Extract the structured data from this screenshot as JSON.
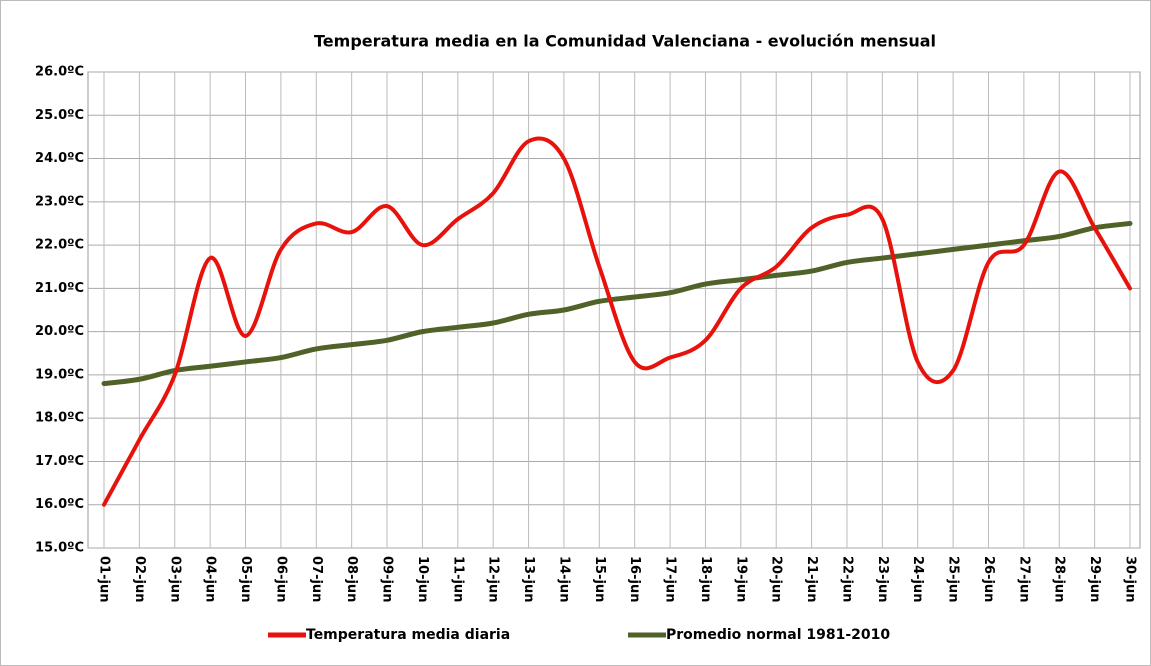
{
  "chart_data": {
    "type": "line",
    "title": "Temperatura media en la Comunidad Valenciana - evolución mensual",
    "categories": [
      "01-jun",
      "02-jun",
      "03-jun",
      "04-jun",
      "05-jun",
      "06-jun",
      "07-jun",
      "08-jun",
      "09-jun",
      "10-jun",
      "11-jun",
      "12-jun",
      "13-jun",
      "14-jun",
      "15-jun",
      "16-jun",
      "17-jun",
      "18-jun",
      "19-jun",
      "20-jun",
      "21-jun",
      "22-jun",
      "23-jun",
      "24-jun",
      "25-jun",
      "26-jun",
      "27-jun",
      "28-jun",
      "29-jun",
      "30-jun"
    ],
    "series": [
      {
        "name": "Temperatura media diaria",
        "color": "#e8120c",
        "values": [
          16.0,
          17.5,
          19.0,
          21.7,
          19.9,
          21.9,
          22.5,
          22.3,
          22.9,
          22.0,
          22.6,
          23.2,
          24.4,
          24.0,
          21.5,
          19.3,
          19.4,
          19.8,
          21.0,
          21.5,
          22.4,
          22.7,
          22.6,
          19.3,
          19.1,
          21.6,
          22.0,
          23.7,
          22.4,
          21.0
        ]
      },
      {
        "name": "Promedio normal 1981-2010",
        "color": "#4f6228",
        "values": [
          18.8,
          18.9,
          19.1,
          19.2,
          19.3,
          19.4,
          19.6,
          19.7,
          19.8,
          20.0,
          20.1,
          20.2,
          20.4,
          20.5,
          20.7,
          20.8,
          20.9,
          21.1,
          21.2,
          21.3,
          21.4,
          21.6,
          21.7,
          21.8,
          21.9,
          22.0,
          22.1,
          22.2,
          22.4,
          22.5
        ]
      }
    ],
    "ylim": [
      15,
      26
    ],
    "yticks": [
      {
        "value": 15,
        "label": "15.0ºC"
      },
      {
        "value": 16,
        "label": "16.0ºC"
      },
      {
        "value": 17,
        "label": "17.0ºC"
      },
      {
        "value": 18,
        "label": "18.0ºC"
      },
      {
        "value": 19,
        "label": "19.0ºC"
      },
      {
        "value": 20,
        "label": "20.0ºC"
      },
      {
        "value": 21,
        "label": "21.0ºC"
      },
      {
        "value": 22,
        "label": "22.0ºC"
      },
      {
        "value": 23,
        "label": "23.0ºC"
      },
      {
        "value": 24,
        "label": "24.0ºC"
      },
      {
        "value": 25,
        "label": "25.0ºC"
      },
      {
        "value": 26,
        "label": "26.0ºC"
      }
    ],
    "grid": true,
    "smooth": true,
    "legend": "bottom"
  }
}
